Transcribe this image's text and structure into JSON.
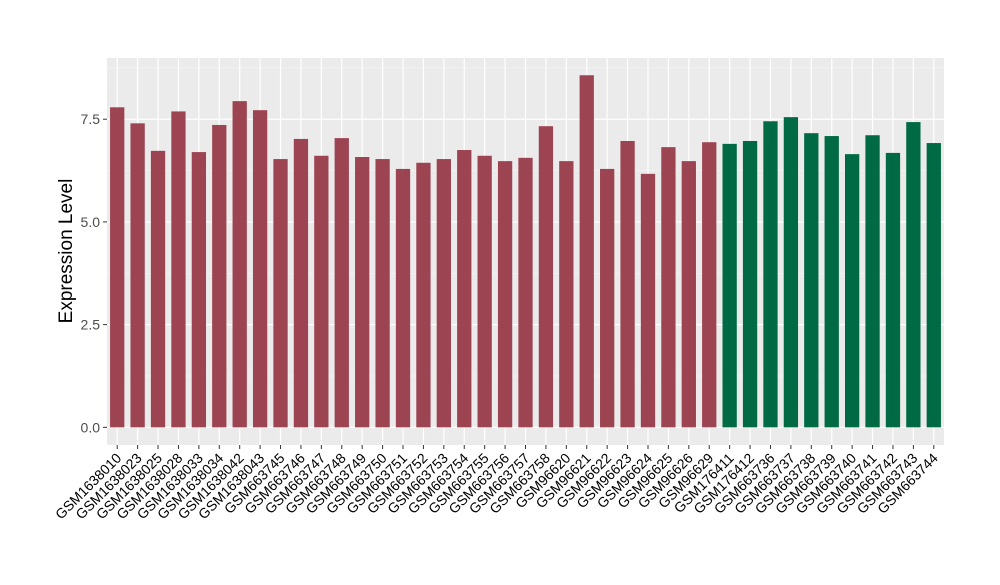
{
  "chart_data": {
    "type": "bar",
    "title": "",
    "xlabel": "",
    "ylabel": "Expression Level",
    "ylim": [
      -0.43,
      8.99
    ],
    "yticks": [
      0.0,
      2.5,
      5.0,
      7.5
    ],
    "ytick_labels": [
      "0.0",
      "2.5",
      "5.0",
      "7.5"
    ],
    "grid": true,
    "legend": "none",
    "categories": [
      "GSM1638010",
      "GSM1638023",
      "GSM1638025",
      "GSM1638028",
      "GSM1638033",
      "GSM1638034",
      "GSM1638042",
      "GSM1638043",
      "GSM663745",
      "GSM663746",
      "GSM663747",
      "GSM663748",
      "GSM663749",
      "GSM663750",
      "GSM663751",
      "GSM663752",
      "GSM663753",
      "GSM663754",
      "GSM663755",
      "GSM663756",
      "GSM663757",
      "GSM663758",
      "GSM96620",
      "GSM96621",
      "GSM96622",
      "GSM96623",
      "GSM96624",
      "GSM96625",
      "GSM96626",
      "GSM96629",
      "GSM176411",
      "GSM176412",
      "GSM663736",
      "GSM663737",
      "GSM663738",
      "GSM663739",
      "GSM663740",
      "GSM663741",
      "GSM663742",
      "GSM663743",
      "GSM663744"
    ],
    "values": [
      7.79,
      7.4,
      6.73,
      7.69,
      6.7,
      7.36,
      7.94,
      7.72,
      6.53,
      7.02,
      6.61,
      7.04,
      6.58,
      6.53,
      6.29,
      6.44,
      6.53,
      6.75,
      6.61,
      6.48,
      6.56,
      7.33,
      6.48,
      8.57,
      6.29,
      6.97,
      6.17,
      6.82,
      6.48,
      6.94,
      6.9,
      6.97,
      7.45,
      7.55,
      7.16,
      7.09,
      6.65,
      7.11,
      6.68,
      7.43,
      6.92
    ],
    "groups": [
      0,
      0,
      0,
      0,
      0,
      0,
      0,
      0,
      0,
      0,
      0,
      0,
      0,
      0,
      0,
      0,
      0,
      0,
      0,
      0,
      0,
      0,
      0,
      0,
      0,
      0,
      0,
      0,
      0,
      0,
      1,
      1,
      1,
      1,
      1,
      1,
      1,
      1,
      1,
      1,
      1
    ],
    "group_colors": [
      "#9C4452",
      "#006A45"
    ]
  }
}
